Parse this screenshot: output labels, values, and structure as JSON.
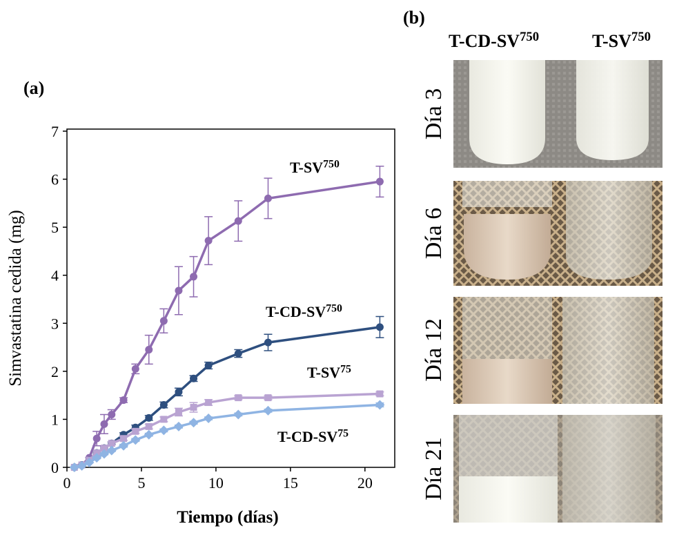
{
  "chart_data": {
    "type": "line",
    "panel_label": "(a)",
    "x_label": "Tiempo (días)",
    "y_label": "Simvastatina cedida (mg)",
    "xlim": [
      0,
      22
    ],
    "xticks": [
      0,
      5,
      10,
      15,
      20
    ],
    "ylim": [
      0,
      7
    ],
    "yticks": [
      0,
      1,
      2,
      3,
      4,
      5,
      6,
      7
    ],
    "x": [
      0.5,
      1,
      1.5,
      2,
      2.5,
      3,
      3.8,
      4.6,
      5.5,
      6.5,
      7.5,
      8.5,
      9.5,
      11.5,
      13.5,
      21
    ],
    "series": [
      {
        "name": "T-SV",
        "superscript": "750",
        "color": "#8e6bb0",
        "marker": "circle",
        "values": [
          0,
          0.05,
          0.2,
          0.6,
          0.9,
          1.1,
          1.4,
          2.05,
          2.45,
          3.05,
          3.68,
          3.97,
          4.72,
          5.13,
          5.6,
          5.95
        ],
        "errors": [
          0,
          0,
          0,
          0.15,
          0.2,
          0.1,
          0.05,
          0.1,
          0.3,
          0.25,
          0.5,
          0.42,
          0.5,
          0.42,
          0.42,
          0.32
        ]
      },
      {
        "name": "T-CD-SV",
        "superscript": "750",
        "color": "#2e4f7f",
        "marker": "circle",
        "values": [
          0,
          0.05,
          0.15,
          0.3,
          0.4,
          0.5,
          0.68,
          0.83,
          1.03,
          1.3,
          1.57,
          1.85,
          2.12,
          2.37,
          2.6,
          2.92
        ],
        "errors": [
          0,
          0,
          0,
          0.03,
          0.03,
          0.03,
          0.04,
          0.05,
          0.05,
          0.06,
          0.08,
          0.06,
          0.07,
          0.08,
          0.17,
          0.22
        ]
      },
      {
        "name": "T-SV",
        "superscript": "75",
        "color": "#b9a3d2",
        "marker": "square",
        "values": [
          0,
          0.05,
          0.15,
          0.3,
          0.4,
          0.5,
          0.6,
          0.75,
          0.85,
          1.0,
          1.15,
          1.25,
          1.35,
          1.45,
          1.45,
          1.53
        ],
        "errors": [
          0,
          0,
          0,
          0.03,
          0.03,
          0.03,
          0.04,
          0.04,
          0.05,
          0.05,
          0.08,
          0.1,
          0.06,
          0.04,
          0.04,
          0.04
        ]
      },
      {
        "name": "T-CD-SV",
        "superscript": "75",
        "color": "#8fb4e3",
        "marker": "diamond",
        "values": [
          0,
          0.03,
          0.1,
          0.2,
          0.28,
          0.35,
          0.45,
          0.57,
          0.68,
          0.77,
          0.85,
          0.93,
          1.02,
          1.1,
          1.18,
          1.3
        ],
        "errors": [
          0,
          0,
          0,
          0.02,
          0.02,
          0.02,
          0.03,
          0.03,
          0.03,
          0.03,
          0.03,
          0.03,
          0.03,
          0.03,
          0.03,
          0.04
        ]
      }
    ]
  },
  "photos": {
    "panel_label": "(b)",
    "columns": [
      {
        "name": "T-CD-SV",
        "superscript": "750"
      },
      {
        "name": "T-SV",
        "superscript": "750"
      }
    ],
    "rows": [
      "Día 3",
      "Día 6",
      "Día 12",
      "Día 21"
    ]
  }
}
